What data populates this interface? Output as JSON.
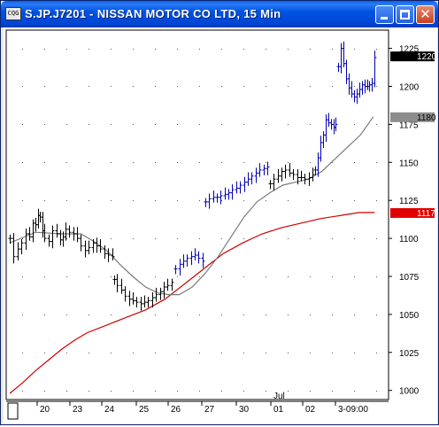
{
  "window": {
    "title": "S.JP.J7201 - NISSAN MOTOR CO LTD, 15 Min",
    "icon_label": "CQG",
    "icon": "cqg-app-icon",
    "buttons": [
      {
        "name": "minimize-button",
        "icon": "minimize-icon"
      },
      {
        "name": "maximize-button",
        "icon": "maximize-icon"
      },
      {
        "name": "close-button",
        "icon": "close-icon"
      }
    ]
  },
  "chart_data": {
    "type": "bar",
    "title": "S.JP.J7201 - NISSAN MOTOR CO LTD, 15 Min",
    "ylim": [
      994,
      1237
    ],
    "y_ticks": [
      1000,
      1025,
      1050,
      1075,
      1100,
      1125,
      1150,
      1175,
      1200,
      1225
    ],
    "y_tick_labels": [
      "1000",
      "1025",
      "1050",
      "1075",
      "1100",
      "1125",
      "1150",
      "1175",
      "1200",
      "1225"
    ],
    "x_labels": [
      "20",
      "23",
      "24",
      "25",
      "26",
      "27",
      "30",
      "01",
      "02",
      "3-09:00"
    ],
    "month_label": "Jul",
    "grid": true,
    "price_markers": [
      {
        "label": "1220",
        "value": 1220,
        "bg": "#000000",
        "fg": "#ffffff"
      },
      {
        "label": "1180",
        "value": 1180,
        "bg": "#8c8c8c",
        "fg": "#000000"
      },
      {
        "label": "1117",
        "value": 1117,
        "bg": "#e00000",
        "fg": "#ffffff"
      }
    ],
    "colors": {
      "down_bars": "#000000",
      "up_bars": "#0000b0",
      "ma_short": "#7a7a7a",
      "ma_long": "#d00000"
    },
    "series": [
      {
        "kind": "price",
        "segments": [
          {
            "style": "down",
            "points": [
              [
                0,
                1100
              ],
              [
                3,
                1088
              ],
              [
                6,
                1093
              ],
              [
                9,
                1097
              ],
              [
                12,
                1103
              ],
              [
                15,
                1101
              ],
              [
                18,
                1110
              ],
              [
                20,
                1109
              ],
              [
                22,
                1115
              ],
              [
                23,
                1114
              ],
              [
                25,
                1105
              ],
              [
                27,
                1100
              ],
              [
                30,
                1098
              ],
              [
                33,
                1105
              ],
              [
                36,
                1103
              ],
              [
                39,
                1099
              ],
              [
                41,
                1101
              ],
              [
                43,
                1106
              ],
              [
                46,
                1104
              ],
              [
                49,
                1103
              ],
              [
                52,
                1100
              ],
              [
                55,
                1095
              ],
              [
                58,
                1092
              ],
              [
                61,
                1094
              ],
              [
                64,
                1097
              ],
              [
                67,
                1095
              ],
              [
                70,
                1093
              ],
              [
                73,
                1090
              ],
              [
                76,
                1089
              ],
              [
                79,
                1088
              ]
            ]
          },
          {
            "style": "down",
            "points": [
              [
                81,
                1073
              ],
              [
                83,
                1069
              ],
              [
                86,
                1066
              ],
              [
                89,
                1062
              ],
              [
                92,
                1060
              ],
              [
                95,
                1059
              ],
              [
                98,
                1058
              ],
              [
                101,
                1057
              ],
              [
                104,
                1058
              ],
              [
                107,
                1059
              ],
              [
                110,
                1061
              ],
              [
                113,
                1063
              ],
              [
                116,
                1065
              ],
              [
                119,
                1068
              ],
              [
                122,
                1069
              ],
              [
                125,
                1071
              ]
            ]
          },
          {
            "style": "up",
            "points": [
              [
                128,
                1080
              ],
              [
                131,
                1083
              ],
              [
                134,
                1085
              ],
              [
                137,
                1087
              ],
              [
                140,
                1088
              ],
              [
                143,
                1089
              ],
              [
                146,
                1087
              ],
              [
                149,
                1085
              ]
            ]
          },
          {
            "style": "up",
            "points": [
              [
                151,
                1124
              ],
              [
                154,
                1126
              ],
              [
                157,
                1127
              ],
              [
                160,
                1127
              ],
              [
                163,
                1128
              ],
              [
                166,
                1129
              ],
              [
                169,
                1130
              ],
              [
                172,
                1132
              ],
              [
                175,
                1133
              ],
              [
                178,
                1135
              ],
              [
                181,
                1137
              ],
              [
                184,
                1139
              ],
              [
                187,
                1141
              ],
              [
                190,
                1143
              ],
              [
                193,
                1145
              ],
              [
                196,
                1146
              ],
              [
                199,
                1147
              ]
            ]
          },
          {
            "style": "down",
            "points": [
              [
                201,
                1136
              ],
              [
                204,
                1139
              ],
              [
                207,
                1141
              ],
              [
                210,
                1144
              ],
              [
                213,
                1145
              ],
              [
                216,
                1143
              ],
              [
                219,
                1142
              ],
              [
                222,
                1140
              ],
              [
                225,
                1140
              ],
              [
                228,
                1139
              ],
              [
                231,
                1140
              ],
              [
                234,
                1142
              ]
            ]
          },
          {
            "style": "up",
            "points": [
              [
                236,
                1145
              ],
              [
                238,
                1153
              ],
              [
                240,
                1163
              ],
              [
                242,
                1168
              ],
              [
                244,
                1178
              ],
              [
                246,
                1176
              ],
              [
                248,
                1175
              ],
              [
                250,
                1173
              ],
              [
                252,
                1175
              ]
            ]
          },
          {
            "style": "up",
            "points": [
              [
                254,
                1213
              ],
              [
                256,
                1225
              ],
              [
                258,
                1215
              ],
              [
                260,
                1205
              ],
              [
                262,
                1199
              ],
              [
                264,
                1195
              ],
              [
                266,
                1193
              ],
              [
                268,
                1195
              ],
              [
                270,
                1198
              ],
              [
                272,
                1201
              ],
              [
                274,
                1200
              ],
              [
                276,
                1200
              ],
              [
                278,
                1201
              ],
              [
                280,
                1202
              ],
              [
                282,
                1219
              ]
            ]
          }
        ]
      },
      {
        "kind": "ma_short",
        "points": [
          [
            0,
            1097
          ],
          [
            20,
            1104
          ],
          [
            40,
            1103
          ],
          [
            55,
            1103
          ],
          [
            65,
            1098
          ],
          [
            75,
            1092
          ],
          [
            85,
            1083
          ],
          [
            95,
            1075
          ],
          [
            105,
            1068
          ],
          [
            115,
            1064
          ],
          [
            123,
            1063
          ],
          [
            131,
            1063
          ],
          [
            141,
            1068
          ],
          [
            151,
            1077
          ],
          [
            161,
            1088
          ],
          [
            171,
            1101
          ],
          [
            181,
            1114
          ],
          [
            191,
            1124
          ],
          [
            201,
            1130
          ],
          [
            211,
            1135
          ],
          [
            221,
            1137
          ],
          [
            231,
            1139
          ],
          [
            241,
            1144
          ],
          [
            251,
            1152
          ],
          [
            261,
            1160
          ],
          [
            271,
            1168
          ],
          [
            281,
            1180
          ]
        ]
      },
      {
        "kind": "ma_long",
        "points": [
          [
            0,
            998
          ],
          [
            10,
            1005
          ],
          [
            20,
            1013
          ],
          [
            30,
            1020
          ],
          [
            40,
            1027
          ],
          [
            50,
            1033
          ],
          [
            60,
            1038
          ],
          [
            75,
            1043
          ],
          [
            90,
            1048
          ],
          [
            105,
            1053
          ],
          [
            120,
            1060
          ],
          [
            135,
            1070
          ],
          [
            150,
            1080
          ],
          [
            165,
            1090
          ],
          [
            180,
            1097
          ],
          [
            195,
            1103
          ],
          [
            210,
            1107
          ],
          [
            225,
            1110
          ],
          [
            240,
            1113
          ],
          [
            255,
            1115
          ],
          [
            270,
            1117
          ],
          [
            282,
            1117
          ]
        ]
      }
    ]
  }
}
